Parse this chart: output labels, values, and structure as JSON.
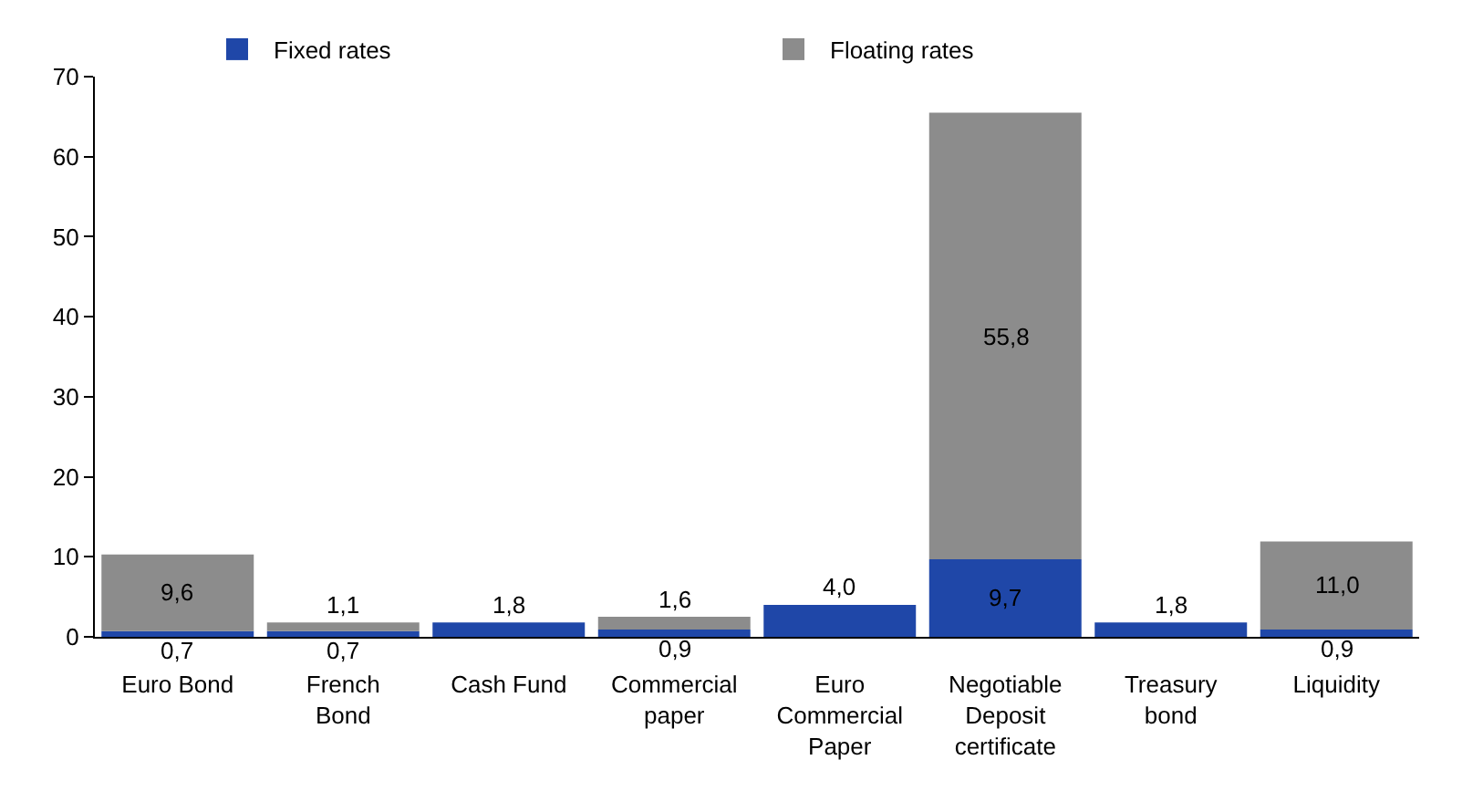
{
  "chart_data": {
    "type": "bar",
    "stacked": true,
    "categories": [
      "Euro Bond",
      "French Bond",
      "Cash Fund",
      "Commercial paper",
      "Euro Commercial Paper",
      "Negotiable Deposit certificate",
      "Treasury bond",
      "Liquidity"
    ],
    "series": [
      {
        "name": "Fixed rates",
        "color": "#1f47a8",
        "values": [
          0.7,
          0.7,
          1.8,
          0.9,
          4.0,
          9.7,
          1.8,
          0.9
        ],
        "value_labels": [
          "0,7",
          "0,7",
          "1,8",
          "0,9",
          "4,0",
          "9,7",
          "1,8",
          "0,9"
        ]
      },
      {
        "name": "Floating rates",
        "color": "#8c8c8c",
        "values": [
          9.6,
          1.1,
          null,
          1.6,
          null,
          55.8,
          null,
          11.0
        ],
        "value_labels": [
          "9,6",
          "1,1",
          null,
          "1,6",
          null,
          "55,8",
          null,
          "11,0"
        ]
      }
    ],
    "ylim": [
      0,
      70
    ],
    "yticks": [
      0,
      10,
      20,
      30,
      40,
      50,
      60,
      70
    ],
    "grid": false,
    "legend": "top"
  }
}
